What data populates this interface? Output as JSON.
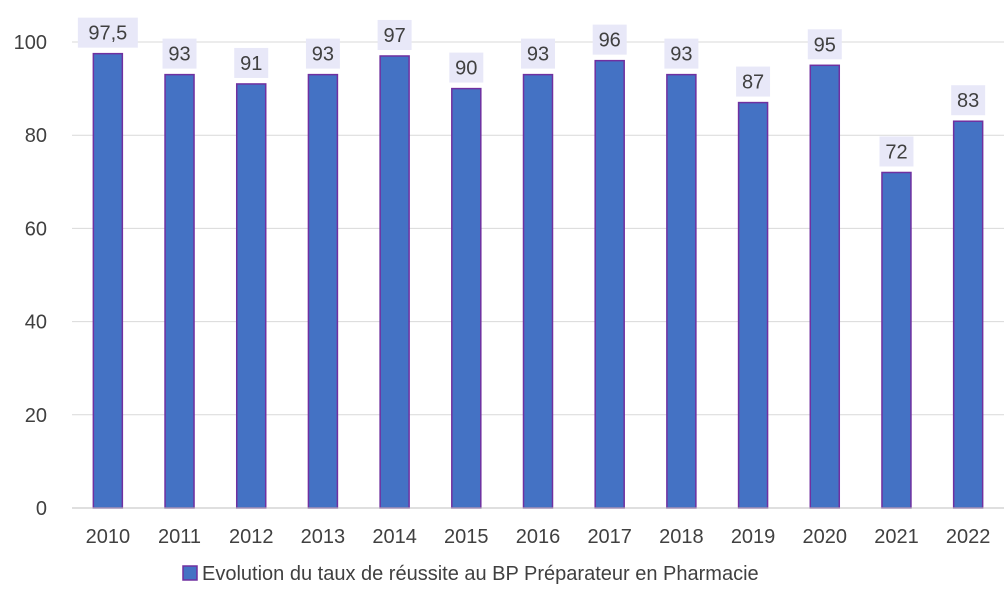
{
  "chart_data": {
    "type": "bar",
    "title": "",
    "xlabel": "",
    "ylabel": "",
    "categories": [
      "2010",
      "2011",
      "2012",
      "2013",
      "2014",
      "2015",
      "2016",
      "2017",
      "2018",
      "2019",
      "2020",
      "2021",
      "2022"
    ],
    "series": [
      {
        "name": "Evolution du taux de réussite au BP Préparateur en Pharmacie",
        "values": [
          97.5,
          93,
          91,
          93,
          97,
          90,
          93,
          96,
          93,
          87,
          95,
          72,
          83
        ],
        "labels": [
          "97,5",
          "93",
          "91",
          "93",
          "97",
          "90",
          "93",
          "96",
          "93",
          "87",
          "95",
          "72",
          "83"
        ],
        "color": "#4472C4",
        "border_color": "#7030A0"
      }
    ],
    "ylim": [
      0,
      100
    ],
    "yticks": [
      0,
      20,
      40,
      60,
      80,
      100
    ],
    "grid": true,
    "legend_position": "bottom",
    "label_background": "#E8E8F8"
  }
}
